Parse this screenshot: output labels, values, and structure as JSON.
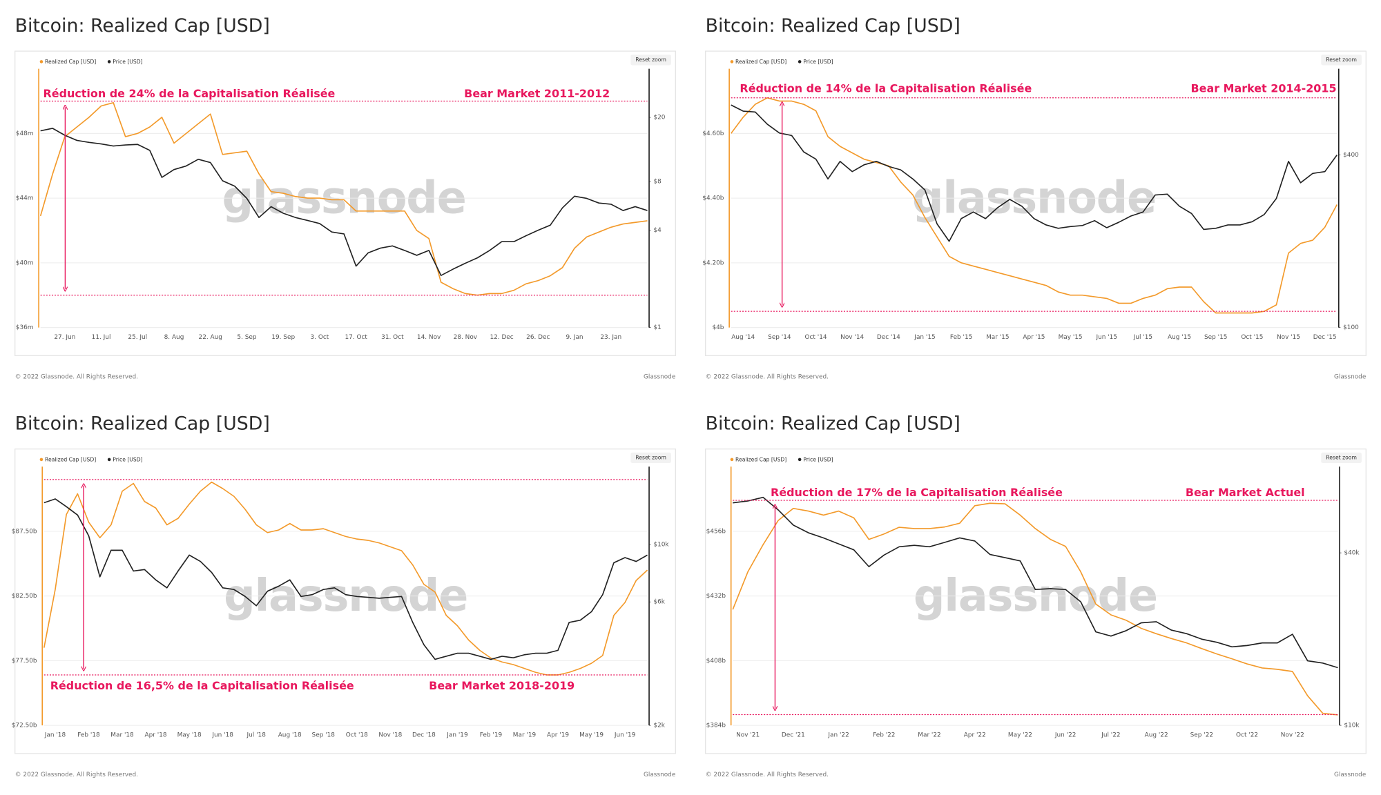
{
  "chart_data": [
    {
      "type": "line",
      "title": "Bitcoin: Realized Cap [USD]",
      "watermark": "glassnode",
      "reset_zoom": "Reset zoom",
      "footer": {
        "copyright": "© 2022 Glassnode. All Rights Reserved.",
        "brand": "Glassnode"
      },
      "annotations": [
        "Réduction de 24% de la Capitalisation Réalisée",
        "Bear Market 2011-2012"
      ],
      "reference_lines": [
        50,
        38
      ],
      "reference_color": "#e8175d",
      "categories": [
        null,
        null,
        "27. Jun",
        null,
        null,
        "11. Jul",
        null,
        null,
        "25. Jul",
        null,
        null,
        "8. Aug",
        null,
        null,
        "22. Aug",
        null,
        null,
        "5. Sep",
        null,
        null,
        "19. Sep",
        null,
        null,
        "3. Oct",
        null,
        null,
        "17. Oct",
        null,
        null,
        "31. Oct",
        null,
        null,
        "14. Nov",
        null,
        null,
        "28. Nov",
        null,
        null,
        "12. Dec",
        null,
        null,
        "26. Dec",
        null,
        null,
        "9. Jan",
        null,
        null,
        "23. Jan",
        null,
        null,
        null
      ],
      "series": [
        {
          "name": "Realized Cap [USD]",
          "color": "#f39a2b",
          "values": [
            42.9,
            45.5,
            47.8,
            48.4,
            49.0,
            49.7,
            49.9,
            47.8,
            48.0,
            48.4,
            49.0,
            47.4,
            48.0,
            48.6,
            49.2,
            46.7,
            46.8,
            46.9,
            45.5,
            44.4,
            44.3,
            44.1,
            44.0,
            44.0,
            43.9,
            43.9,
            43.2,
            43.2,
            43.2,
            43.2,
            43.2,
            42.0,
            41.5,
            38.8,
            38.4,
            38.1,
            38.0,
            38.1,
            38.1,
            38.3,
            38.7,
            38.9,
            39.2,
            39.7,
            40.9,
            41.6,
            41.9,
            42.2,
            42.4,
            42.5,
            42.6
          ]
        },
        {
          "name": "Price [USD]",
          "color": "#222222",
          "axis": "y2",
          "values": [
            16.5,
            17.1,
            15.5,
            14.4,
            14.0,
            13.7,
            13.3,
            13.5,
            13.6,
            12.5,
            8.5,
            9.5,
            10.0,
            11.0,
            10.5,
            8.1,
            7.5,
            6.3,
            4.8,
            5.6,
            5.1,
            4.8,
            4.6,
            4.4,
            3.9,
            3.8,
            2.4,
            2.9,
            3.1,
            3.2,
            3.0,
            2.8,
            3.0,
            2.1,
            2.3,
            2.5,
            2.7,
            3.0,
            3.4,
            3.4,
            3.7,
            4.0,
            4.3,
            5.5,
            6.5,
            6.3,
            5.9,
            5.8,
            5.3,
            5.6,
            5.3
          ]
        }
      ],
      "ylim": [
        36,
        52
      ],
      "yticks": [
        {
          "value": 36,
          "label": "$36m"
        },
        {
          "value": 40,
          "label": "$40m"
        },
        {
          "value": 44,
          "label": "$44m"
        },
        {
          "value": 48,
          "label": "$48m"
        }
      ],
      "y2lim": [
        1,
        40
      ],
      "y2log": true,
      "y2ticks": [
        {
          "value": 1,
          "label": "$1"
        },
        {
          "value": 4,
          "label": "$4"
        },
        {
          "value": 8,
          "label": "$8"
        },
        {
          "value": 20,
          "label": "$20"
        }
      ],
      "grid": true
    },
    {
      "type": "line",
      "title": "Bitcoin: Realized Cap [USD]",
      "watermark": "glassnode",
      "reset_zoom": "Reset zoom",
      "footer": {
        "copyright": "© 2022 Glassnode. All Rights Reserved.",
        "brand": "Glassnode"
      },
      "annotations": [
        "Réduction de 14% de la Capitalisation Réalisée",
        "Bear Market 2014-2015"
      ],
      "reference_lines": [
        4.71,
        4.05
      ],
      "reference_color": "#e8175d",
      "categories": [
        null,
        "Aug '14",
        null,
        null,
        "Sep '14",
        null,
        null,
        "Oct '14",
        null,
        null,
        "Nov '14",
        null,
        null,
        "Dec '14",
        null,
        null,
        "Jan '15",
        null,
        null,
        "Feb '15",
        null,
        null,
        "Mar '15",
        null,
        null,
        "Apr '15",
        null,
        null,
        "May '15",
        null,
        null,
        "Jun '15",
        null,
        null,
        "Jul '15",
        null,
        null,
        "Aug '15",
        null,
        null,
        "Sep '15",
        null,
        null,
        "Oct '15",
        null,
        null,
        "Nov '15",
        null,
        null,
        "Dec '15",
        null
      ],
      "series": [
        {
          "name": "Realized Cap [USD]",
          "color": "#f39a2b",
          "values": [
            4.6,
            4.65,
            4.69,
            4.71,
            4.7,
            4.7,
            4.69,
            4.67,
            4.59,
            4.56,
            4.54,
            4.52,
            4.51,
            4.5,
            4.45,
            4.41,
            4.34,
            4.28,
            4.22,
            4.2,
            4.19,
            4.18,
            4.17,
            4.16,
            4.15,
            4.14,
            4.13,
            4.11,
            4.1,
            4.1,
            4.095,
            4.09,
            4.075,
            4.075,
            4.09,
            4.1,
            4.12,
            4.125,
            4.125,
            4.08,
            4.045,
            4.045,
            4.045,
            4.045,
            4.05,
            4.07,
            4.23,
            4.26,
            4.27,
            4.31,
            4.38
          ]
        },
        {
          "name": "Price [USD]",
          "color": "#222222",
          "axis": "y2",
          "values": [
            598,
            569,
            565,
            512,
            477,
            468,
            410,
            387,
            330,
            380,
            350,
            370,
            380,
            365,
            355,
            330,
            302,
            230,
            200,
            240,
            253,
            240,
            262,
            280,
            265,
            240,
            228,
            222,
            225,
            227,
            236,
            223,
            233,
            245,
            253,
            290,
            292,
            265,
            250,
            220,
            222,
            228,
            228,
            234,
            248,
            282,
            380,
            320,
            345,
            350,
            400
          ]
        }
      ],
      "ylim": [
        4,
        4.8
      ],
      "yticks": [
        {
          "value": 4,
          "label": "$4b"
        },
        {
          "value": 4.2,
          "label": "$4.20b"
        },
        {
          "value": 4.4,
          "label": "$4.40b"
        },
        {
          "value": 4.6,
          "label": "$4.60b"
        }
      ],
      "y2lim": [
        100,
        800
      ],
      "y2log": true,
      "y2ticks": [
        {
          "value": 100,
          "label": "$100"
        },
        {
          "value": 400,
          "label": "$400"
        }
      ],
      "grid": true
    },
    {
      "type": "line",
      "title": "Bitcoin: Realized Cap [USD]",
      "watermark": "glassnode",
      "reset_zoom": "Reset zoom",
      "footer": {
        "copyright": "© 2022 Glassnode. All Rights Reserved.",
        "brand": "Glassnode"
      },
      "annotations": [
        "Réduction de 16,5% de la Capitalisation Réalisée",
        "Bear Market 2018-2019"
      ],
      "reference_lines": [
        91.5,
        76.4
      ],
      "reference_color": "#e8175d",
      "categories": [
        null,
        "Jan '18",
        null,
        null,
        "Feb '18",
        null,
        null,
        "Mar '18",
        null,
        null,
        "Apr '18",
        null,
        null,
        "May '18",
        null,
        null,
        "Jun '18",
        null,
        null,
        "Jul '18",
        null,
        null,
        "Aug '18",
        null,
        null,
        "Sep '18",
        null,
        null,
        "Oct '18",
        null,
        null,
        "Nov '18",
        null,
        null,
        "Dec '18",
        null,
        null,
        "Jan '19",
        null,
        null,
        "Feb '19",
        null,
        null,
        "Mar '19",
        null,
        null,
        "Apr '19",
        null,
        null,
        "May '19",
        null,
        null,
        "Jun '19",
        null,
        null
      ],
      "series": [
        {
          "name": "Realized Cap [USD]",
          "color": "#f39a2b",
          "values": [
            78.5,
            83.0,
            88.8,
            90.4,
            88.2,
            87.0,
            88.0,
            90.6,
            91.2,
            89.8,
            89.3,
            88.0,
            88.5,
            89.6,
            90.6,
            91.3,
            90.8,
            90.2,
            89.2,
            88.0,
            87.4,
            87.6,
            88.1,
            87.6,
            87.6,
            87.7,
            87.4,
            87.1,
            86.9,
            86.8,
            86.6,
            86.3,
            86.0,
            84.9,
            83.4,
            82.8,
            81.0,
            80.2,
            79.1,
            78.3,
            77.7,
            77.4,
            77.2,
            76.9,
            76.6,
            76.4,
            76.4,
            76.6,
            76.9,
            77.3,
            77.9,
            81.0,
            82.0,
            83.7,
            84.5
          ]
        },
        {
          "name": "Price [USD]",
          "color": "#222222",
          "axis": "y2",
          "values": [
            14.5,
            15.0,
            14.0,
            13.0,
            10.8,
            7.5,
            9.5,
            9.5,
            7.9,
            8.0,
            7.3,
            6.8,
            7.9,
            9.1,
            8.6,
            7.8,
            6.8,
            6.7,
            6.3,
            5.8,
            6.6,
            6.9,
            7.3,
            6.3,
            6.4,
            6.7,
            6.8,
            6.4,
            6.3,
            6.25,
            6.2,
            6.25,
            6.3,
            5.0,
            4.1,
            3.6,
            3.7,
            3.8,
            3.8,
            3.7,
            3.6,
            3.7,
            3.65,
            3.75,
            3.8,
            3.8,
            3.9,
            5.0,
            5.1,
            5.5,
            6.4,
            8.5,
            8.9,
            8.6,
            9.1
          ]
        }
      ],
      "ylim": [
        72.5,
        92.5
      ],
      "yticks": [
        {
          "value": 72.5,
          "label": "$72.50b"
        },
        {
          "value": 77.5,
          "label": "$77.50b"
        },
        {
          "value": 82.5,
          "label": "$82.50b"
        },
        {
          "value": 87.5,
          "label": "$87.50b"
        }
      ],
      "y2lim": [
        2,
        20
      ],
      "y2log": true,
      "y2ticks": [
        {
          "value": 2,
          "label": "$2k"
        },
        {
          "value": 6,
          "label": "$6k"
        },
        {
          "value": 10,
          "label": "$10k"
        }
      ],
      "grid": true
    },
    {
      "type": "line",
      "title": "Bitcoin: Realized Cap [USD]",
      "watermark": "glassnode",
      "reset_zoom": "Reset zoom",
      "footer": {
        "copyright": "© 2022 Glassnode. All Rights Reserved.",
        "brand": "Glassnode"
      },
      "annotations": [
        "Réduction de 17% de la Capitalisation Réalisée",
        "Bear Market Actuel"
      ],
      "reference_lines": [
        467.5,
        388
      ],
      "reference_color": "#e8175d",
      "categories": [
        null,
        "Nov '21",
        null,
        null,
        "Dec '21",
        null,
        null,
        "Jan '22",
        null,
        null,
        "Feb '22",
        null,
        null,
        "Mar '22",
        null,
        null,
        "Apr '22",
        null,
        null,
        "May '22",
        null,
        null,
        "Jun '22",
        null,
        null,
        "Jul '22",
        null,
        null,
        "Aug '22",
        null,
        null,
        "Sep '22",
        null,
        null,
        "Oct '22",
        null,
        null,
        "Nov '22",
        null,
        null,
        null
      ],
      "series": [
        {
          "name": "Realized Cap [USD]",
          "color": "#f39a2b",
          "values": [
            427,
            441,
            451,
            460,
            464.5,
            463.5,
            462,
            463.5,
            461,
            453,
            455,
            457.5,
            457,
            457,
            457.6,
            459,
            465.5,
            466.4,
            466.2,
            462,
            457,
            453,
            450.4,
            441,
            429,
            425,
            423,
            420,
            418,
            416.2,
            414.6,
            412.5,
            410.5,
            408.7,
            406.8,
            405.3,
            404.8,
            404,
            395,
            388.5,
            387.9
          ]
        },
        {
          "name": "Price [USD]",
          "color": "#222222",
          "axis": "y2",
          "values": [
            59.8,
            60.7,
            62.5,
            56.5,
            50,
            47,
            45.1,
            43.0,
            41.0,
            35.8,
            39.3,
            42.0,
            42.5,
            42.0,
            43.5,
            45.1,
            44.0,
            39.5,
            38.5,
            37.5,
            29.8,
            30.0,
            29.8,
            27.0,
            21.2,
            20.5,
            21.4,
            22.8,
            23.0,
            21.5,
            20.9,
            20.0,
            19.5,
            18.8,
            19.0,
            19.4,
            19.4,
            20.8,
            16.8,
            16.5,
            15.9
          ]
        }
      ],
      "ylim": [
        384,
        480
      ],
      "yticks": [
        {
          "value": 384,
          "label": "$384b"
        },
        {
          "value": 408,
          "label": "$408b"
        },
        {
          "value": 432,
          "label": "$432b"
        },
        {
          "value": 456,
          "label": "$456b"
        }
      ],
      "y2lim": [
        10,
        80
      ],
      "y2log": true,
      "y2ticks": [
        {
          "value": 10,
          "label": "$10k"
        },
        {
          "value": 40,
          "label": "$40k"
        }
      ],
      "grid": true
    }
  ]
}
